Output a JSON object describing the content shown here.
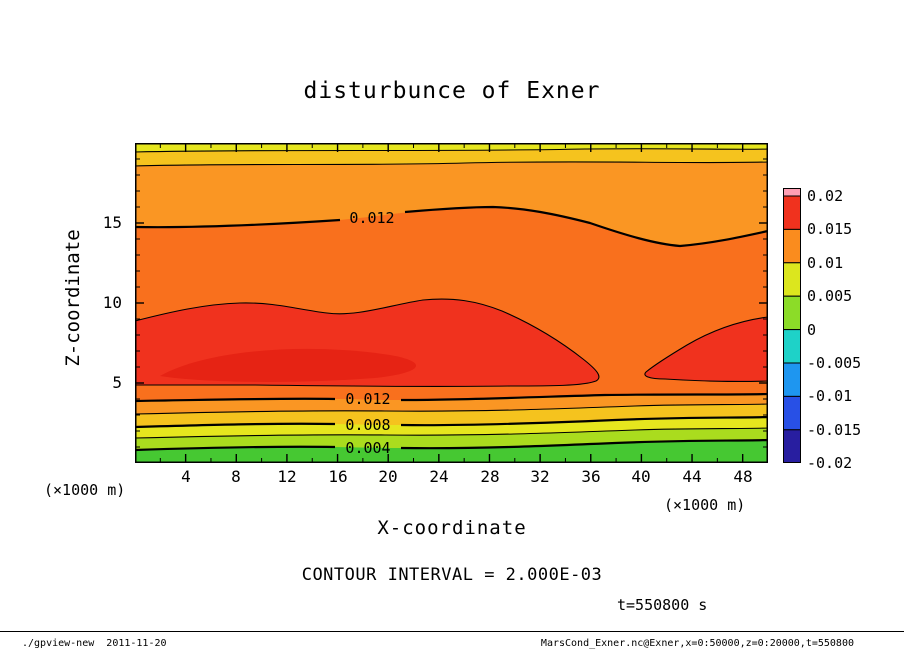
{
  "page": {
    "title": "disturbunce of Exner",
    "footer": {
      "program": "./gpview-new",
      "date": "2011-11-20",
      "provenance": "MarsCond_Exner.nc@Exner,x=0:50000,z=0:20000,t=550800"
    }
  },
  "chart_data": {
    "type": "heatmap",
    "subtype": "filled-contour",
    "title": "disturbunce of Exner",
    "xlabel": "X-coordinate",
    "ylabel": "Z-coordinate",
    "x_units_label": "(×1000 m)",
    "y_units_label": "(×1000 m)",
    "xlim": [
      0,
      50
    ],
    "ylim": [
      0,
      20
    ],
    "x_ticks": [
      4,
      8,
      12,
      16,
      20,
      24,
      28,
      32,
      36,
      40,
      44,
      48
    ],
    "y_ticks": [
      5,
      10,
      15
    ],
    "grid": false,
    "legend_position": "colorbar-right",
    "annotations": {
      "contour_interval": "CONTOUR INTERVAL = 2.000E-03",
      "time": "t=550800 s"
    },
    "contour_interval_value": 0.002,
    "contour_labels": [
      {
        "text": "0.012",
        "value": 0.012,
        "x_km": 18,
        "z_km": 15.0,
        "position": "upper"
      },
      {
        "text": "0.012",
        "value": 0.012,
        "x_km": 18,
        "z_km": 3.9,
        "position": "lower"
      },
      {
        "text": "0.008",
        "value": 0.008,
        "x_km": 18,
        "z_km": 2.3,
        "position": "lower"
      },
      {
        "text": "0.004",
        "value": 0.004,
        "x_km": 18,
        "z_km": 0.9,
        "position": "lower"
      }
    ],
    "fill_bands": [
      {
        "level": "0.002-0.004",
        "color": "#46c832"
      },
      {
        "level": "0.004-0.006",
        "color": "#aadc1e"
      },
      {
        "level": "0.006-0.008",
        "color": "#e6e61e"
      },
      {
        "level": "0.008-0.010",
        "color": "#f5c31e"
      },
      {
        "level": "0.010-0.012",
        "color": "#fa9623"
      },
      {
        "level": "0.012-0.014",
        "color": "#f9701d"
      },
      {
        "level": "0.014-0.016",
        "color": "#f0321e"
      },
      {
        "level": "0.016-0.018",
        "color": "#e62314"
      }
    ],
    "colorbar": {
      "labels": [
        "0.02",
        "0.015",
        "0.01",
        "0.005",
        "0",
        "-0.005",
        "-0.01",
        "-0.015",
        "-0.02"
      ],
      "colors": [
        "#ff9fb4",
        "#f0321e",
        "#fa8c1e",
        "#dce61e",
        "#8cdc28",
        "#1ed2c8",
        "#1e96f0",
        "#2850e6",
        "#281ea0"
      ],
      "segment_ranges": [
        "above 0.02",
        "0.015 to 0.02",
        "0.01 to 0.015",
        "0.005 to 0.01",
        "0 to 0.005",
        "-0.005 to 0",
        "-0.01 to -0.005",
        "-0.015 to -0.01",
        "-0.02 to -0.015"
      ]
    },
    "field_summary": {
      "description": "Positive Exner-function disturbance everywhere in the section; values increase from about 0.002 at the surface to a maximum band of 0.014-0.016 between z of roughly 5 and 10 km (red core, pinched near x=40 km), then decrease upward through 0.012 near z=14.5 km to about 0.006-0.008 at the model top.",
      "surface_value_band": [
        0.002,
        0.004
      ],
      "max_band": [
        0.014,
        0.016
      ],
      "max_region_z_km": [
        5,
        10
      ],
      "top_value_band": [
        0.006,
        0.008
      ],
      "upper_0012_contour_z_km": {
        "at_x0": 14.7,
        "at_x28": 16.0,
        "at_x42": 13.5,
        "at_x50": 14.5
      }
    }
  }
}
